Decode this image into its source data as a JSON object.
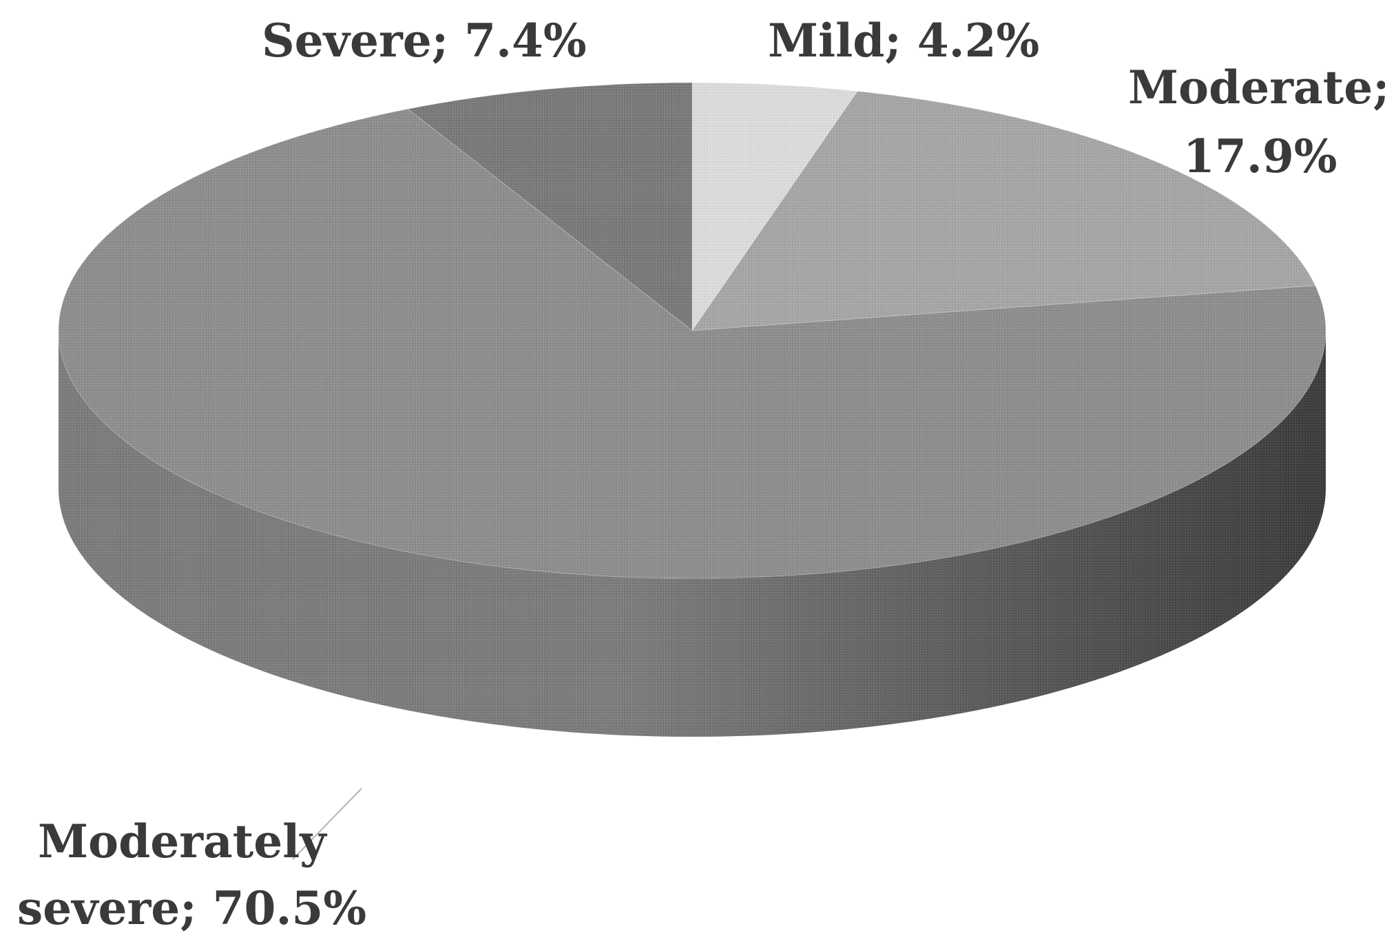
{
  "chart_data": {
    "type": "pie",
    "title": "",
    "series": [
      {
        "values": [
          4.2,
          17.9,
          70.5,
          7.4
        ]
      }
    ],
    "categories": [
      "Mild",
      "Moderate",
      "Moderately severe",
      "Severe"
    ],
    "values": [
      4.2,
      17.9,
      70.5,
      7.4
    ],
    "labels": [
      {
        "line1": "Mild; 4.2%"
      },
      {
        "line1": "Moderate;",
        "line2": "17.9%"
      },
      {
        "line1": "Moderately",
        "line2": "severe; 70.5%"
      },
      {
        "line1": "Severe; 7.4%"
      }
    ],
    "colors": {
      "Mild": "#dcdcdc",
      "Moderate": "#a6a6a6",
      "Moderately severe": "#8e8e8e",
      "Severe": "#7a7a7a",
      "side_light": "#7c7c7c",
      "side_dark": "#3c3c3c"
    },
    "style": "3d-exploded-none",
    "legend": "none"
  }
}
